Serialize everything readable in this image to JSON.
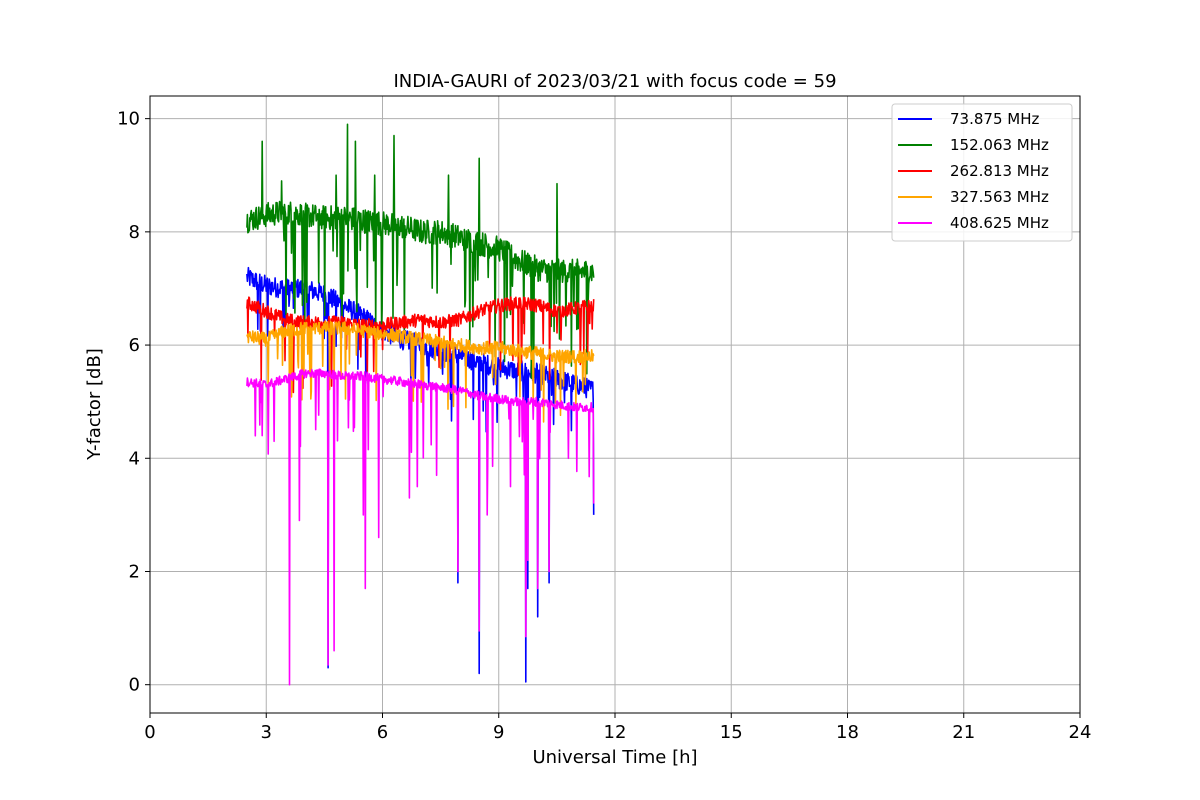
{
  "chart_data": {
    "type": "line",
    "title": "INDIA-GAURI of 2023/03/21 with focus code = 59",
    "xlabel": "Universal Time [h]",
    "ylabel": "Y-factor [dB]",
    "xlim": [
      0,
      24
    ],
    "ylim": [
      -0.5,
      10.4
    ],
    "xticks": [
      0,
      3,
      6,
      9,
      12,
      15,
      18,
      21,
      24
    ],
    "yticks": [
      0,
      2,
      4,
      6,
      8,
      10
    ],
    "xtick_labels": [
      "0",
      "3",
      "6",
      "9",
      "12",
      "15",
      "18",
      "21",
      "24"
    ],
    "ytick_labels": [
      "0",
      "2",
      "4",
      "6",
      "8",
      "10"
    ],
    "grid": true,
    "legend_position": "top-right",
    "series": [
      {
        "name": " 73.875 MHz",
        "color": "#0000ff",
        "x": [
          2.5,
          3.0,
          3.5,
          4.0,
          4.5,
          5.0,
          5.5,
          6.0,
          6.5,
          7.0,
          7.5,
          8.0,
          8.5,
          9.0,
          9.5,
          10.0,
          10.5,
          11.0,
          11.45
        ],
        "y": [
          7.2,
          7.05,
          7.0,
          7.0,
          6.9,
          6.7,
          6.5,
          6.25,
          6.1,
          6.0,
          5.9,
          5.8,
          5.7,
          5.6,
          5.55,
          5.5,
          5.4,
          5.3,
          5.2
        ],
        "dips": [
          [
            4.6,
            0.3
          ],
          [
            7.95,
            1.8
          ],
          [
            8.5,
            0.2
          ],
          [
            9.7,
            0.05
          ],
          [
            9.75,
            1.7
          ],
          [
            10.0,
            1.2
          ],
          [
            10.3,
            1.8
          ],
          [
            11.45,
            3.0
          ]
        ]
      },
      {
        "name": "152.063 MHz",
        "color": "#008000",
        "x": [
          2.5,
          3.0,
          3.5,
          4.0,
          4.5,
          5.0,
          5.5,
          6.0,
          6.5,
          7.0,
          7.5,
          8.0,
          8.5,
          9.0,
          9.5,
          10.0,
          10.5,
          11.0,
          11.45
        ],
        "y": [
          8.2,
          8.3,
          8.35,
          8.3,
          8.25,
          8.25,
          8.2,
          8.15,
          8.1,
          8.0,
          8.0,
          7.9,
          7.8,
          7.7,
          7.5,
          7.35,
          7.3,
          7.3,
          7.3
        ],
        "spikes": [
          [
            2.9,
            9.6
          ],
          [
            3.4,
            8.9
          ],
          [
            4.8,
            9.0
          ],
          [
            5.1,
            9.9
          ],
          [
            5.3,
            9.6
          ],
          [
            5.8,
            9.0
          ],
          [
            6.3,
            9.7
          ],
          [
            7.7,
            9.0
          ],
          [
            8.5,
            9.3
          ],
          [
            10.5,
            8.85
          ]
        ]
      },
      {
        "name": "262.813 MHz",
        "color": "#ff0000",
        "x": [
          2.5,
          3.0,
          3.5,
          4.0,
          4.5,
          5.0,
          5.5,
          6.0,
          6.5,
          7.0,
          7.5,
          8.0,
          8.5,
          9.0,
          9.5,
          10.0,
          10.5,
          11.0,
          11.45
        ],
        "y": [
          6.75,
          6.6,
          6.45,
          6.4,
          6.4,
          6.4,
          6.35,
          6.35,
          6.4,
          6.45,
          6.4,
          6.45,
          6.6,
          6.7,
          6.75,
          6.7,
          6.6,
          6.65,
          6.7
        ]
      },
      {
        "name": "327.563 MHz",
        "color": "#ffa500",
        "x": [
          2.5,
          3.0,
          3.5,
          4.0,
          4.5,
          5.0,
          5.5,
          6.0,
          6.5,
          7.0,
          7.5,
          8.0,
          8.5,
          9.0,
          9.5,
          10.0,
          10.5,
          11.0,
          11.45
        ],
        "y": [
          6.15,
          6.1,
          6.25,
          6.3,
          6.3,
          6.3,
          6.25,
          6.2,
          6.15,
          6.1,
          6.05,
          6.0,
          5.95,
          5.95,
          5.9,
          5.85,
          5.8,
          5.8,
          5.8
        ]
      },
      {
        "name": "408.625 MHz",
        "color": "#ff00ff",
        "x": [
          2.5,
          3.0,
          3.5,
          4.0,
          4.5,
          5.0,
          5.5,
          6.0,
          6.5,
          7.0,
          7.5,
          8.0,
          8.5,
          9.0,
          9.5,
          10.0,
          10.5,
          11.0,
          11.45
        ],
        "y": [
          5.35,
          5.3,
          5.4,
          5.5,
          5.5,
          5.45,
          5.45,
          5.4,
          5.35,
          5.3,
          5.25,
          5.2,
          5.1,
          5.05,
          5.0,
          5.0,
          4.95,
          4.9,
          4.9
        ],
        "dips": [
          [
            2.9,
            4.4
          ],
          [
            3.2,
            4.3
          ],
          [
            3.6,
            0.0
          ],
          [
            3.85,
            2.9
          ],
          [
            4.6,
            0.35
          ],
          [
            4.75,
            0.6
          ],
          [
            5.5,
            3.0
          ],
          [
            5.55,
            1.7
          ],
          [
            5.9,
            2.6
          ],
          [
            6.7,
            3.3
          ],
          [
            6.9,
            3.5
          ],
          [
            7.4,
            3.7
          ],
          [
            7.95,
            2.0
          ],
          [
            8.5,
            0.95
          ],
          [
            8.7,
            3.0
          ],
          [
            9.3,
            3.5
          ],
          [
            9.7,
            0.85
          ],
          [
            9.75,
            2.2
          ],
          [
            10.0,
            1.7
          ],
          [
            10.3,
            2.0
          ],
          [
            10.8,
            4.0
          ],
          [
            11.45,
            3.2
          ]
        ]
      }
    ]
  }
}
